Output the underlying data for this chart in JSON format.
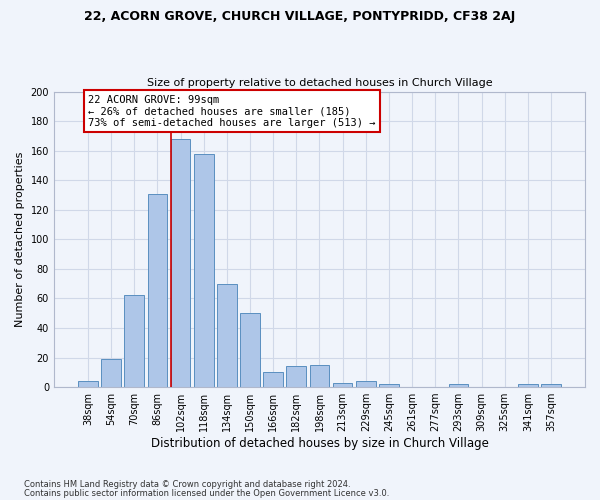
{
  "title1": "22, ACORN GROVE, CHURCH VILLAGE, PONTYPRIDD, CF38 2AJ",
  "title2": "Size of property relative to detached houses in Church Village",
  "xlabel": "Distribution of detached houses by size in Church Village",
  "ylabel": "Number of detached properties",
  "footnote1": "Contains HM Land Registry data © Crown copyright and database right 2024.",
  "footnote2": "Contains public sector information licensed under the Open Government Licence v3.0.",
  "bar_labels": [
    "38sqm",
    "54sqm",
    "70sqm",
    "86sqm",
    "102sqm",
    "118sqm",
    "134sqm",
    "150sqm",
    "166sqm",
    "182sqm",
    "198sqm",
    "213sqm",
    "229sqm",
    "245sqm",
    "261sqm",
    "277sqm",
    "293sqm",
    "309sqm",
    "325sqm",
    "341sqm",
    "357sqm"
  ],
  "bar_values": [
    4,
    19,
    62,
    131,
    168,
    158,
    70,
    50,
    10,
    14,
    15,
    3,
    4,
    2,
    0,
    0,
    2,
    0,
    0,
    2,
    2
  ],
  "bar_color": "#aec6e8",
  "bar_edgecolor": "#5a8fc0",
  "grid_color": "#d0d8e8",
  "background_color": "#f0f4fb",
  "annotation_line1": "22 ACORN GROVE: 99sqm",
  "annotation_line2": "← 26% of detached houses are smaller (185)",
  "annotation_line3": "73% of semi-detached houses are larger (513) →",
  "annotation_box_facecolor": "#ffffff",
  "annotation_box_edgecolor": "#cc0000",
  "red_line_bar_index": 4,
  "ylim": [
    0,
    200
  ],
  "yticks": [
    0,
    20,
    40,
    60,
    80,
    100,
    120,
    140,
    160,
    180,
    200
  ]
}
